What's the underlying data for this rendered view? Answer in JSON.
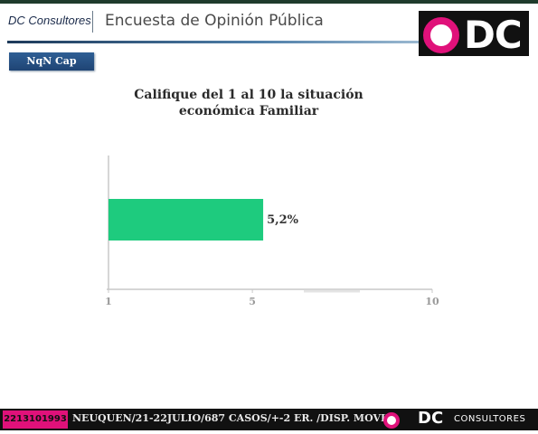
{
  "header": {
    "brand": "DC Consultores",
    "survey_title": "Encuesta de Opinión Pública",
    "logo_text": "DC"
  },
  "tag": "NqN Cap",
  "colors": {
    "bar": "#1ecb7e",
    "accent_pink": "#e0117a",
    "header_blue": "#2f5f95"
  },
  "chart_data": {
    "type": "bar",
    "orientation": "horizontal",
    "title": "Califique del 1 al 10 la situación económica Familiar",
    "categories": [
      ""
    ],
    "values": [
      5.2
    ],
    "value_labels": [
      "5,2%"
    ],
    "xlim": [
      1,
      10
    ],
    "x_ticks": [
      1,
      5,
      10
    ],
    "x_tick_labels": [
      "1",
      "5",
      "10"
    ],
    "grid": false,
    "legend": "none"
  },
  "footer": {
    "id": "2213101993",
    "text": "NEUQUEN/21-22JULIO/687 CASOS/+-2 ER. /DISP. MOVIL",
    "brand_dc": "DC",
    "brand_cons": "CONSULTORES"
  }
}
